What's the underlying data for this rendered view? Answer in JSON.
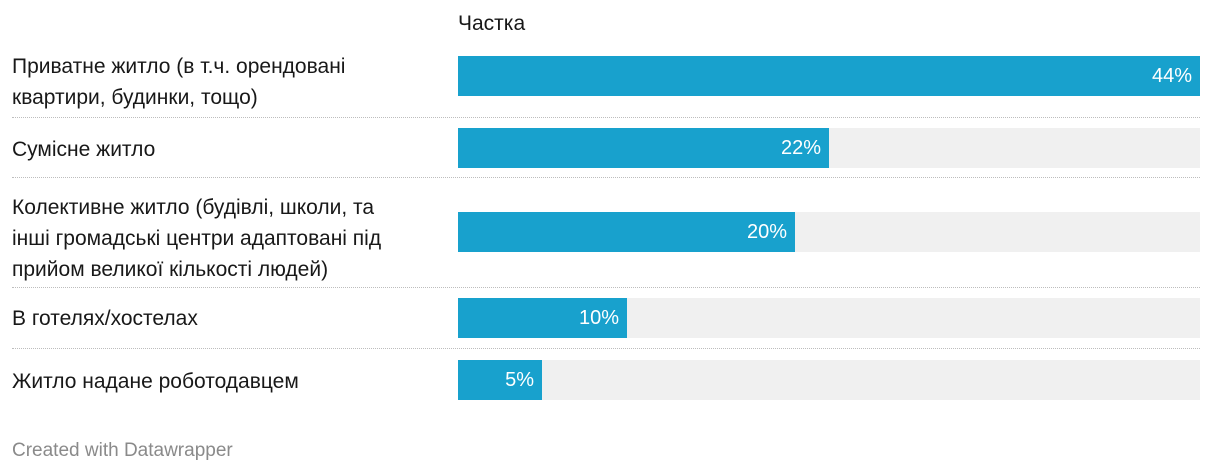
{
  "chart_data": {
    "type": "bar",
    "orientation": "horizontal",
    "column_header": "Частка",
    "categories": [
      "Приватне житло (в т.ч. орендовані квартири, будинки, тощо)",
      "Сумісне житло",
      "Колективне житло (будівлі, школи, та інші громадські центри адаптовані під прийом великої кількості людей)",
      "В готелях/хостелах",
      "Житло надане роботодавцем"
    ],
    "label_lines": [
      [
        "Приватне житло (в т.ч. орендовані",
        "квартири, будинки, тощо)"
      ],
      [
        "Сумісне житло"
      ],
      [
        "Колективне житло (будівлі, школи, та",
        "інші громадські центри адаптовані під",
        "прийом великої кількості людей)"
      ],
      [
        "В готелях/хостелах"
      ],
      [
        "Житло надане роботодавцем"
      ]
    ],
    "values": [
      44,
      22,
      20,
      10,
      5
    ],
    "value_labels": [
      "44%",
      "22%",
      "20%",
      "10%",
      "5%"
    ],
    "xlim": [
      0,
      44
    ],
    "bar_color": "#18a1cd",
    "track_color": "#f0f0f0"
  },
  "footer": "Created with Datawrapper"
}
